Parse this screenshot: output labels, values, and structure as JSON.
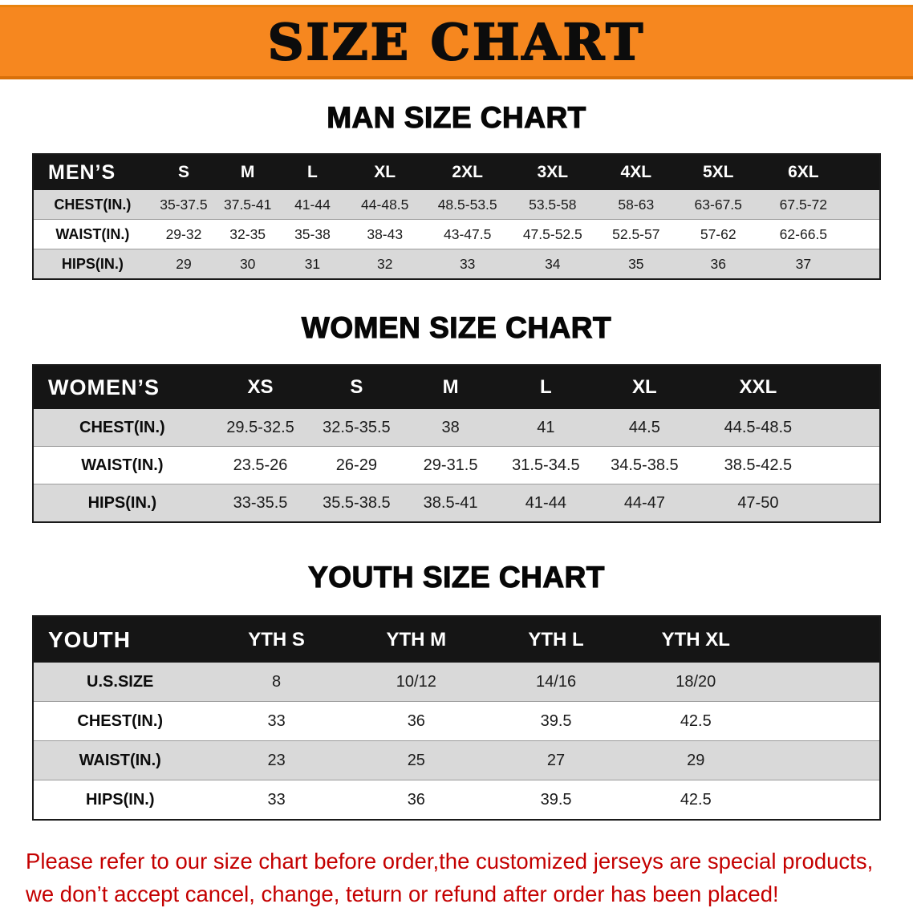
{
  "banner": {
    "title": "SIZE CHART"
  },
  "sections": [
    {
      "heading": "MAN SIZE CHART",
      "header_label": "MEN’S",
      "sizes": [
        "S",
        "M",
        "L",
        "XL",
        "2XL",
        "3XL",
        "4XL",
        "5XL",
        "6XL"
      ],
      "rows": [
        {
          "label": "CHEST(IN.)",
          "values": [
            "35-37.5",
            "37.5-41",
            "41-44",
            "44-48.5",
            "48.5-53.5",
            "53.5-58",
            "58-63",
            "63-67.5",
            "67.5-72"
          ]
        },
        {
          "label": "WAIST(IN.)",
          "values": [
            "29-32",
            "32-35",
            "35-38",
            "38-43",
            "43-47.5",
            "47.5-52.5",
            "52.5-57",
            "57-62",
            "62-66.5"
          ]
        },
        {
          "label": "HIPS(IN.)",
          "values": [
            "29",
            "30",
            "31",
            "32",
            "33",
            "34",
            "35",
            "36",
            "37"
          ]
        }
      ]
    },
    {
      "heading": "WOMEN SIZE CHART",
      "header_label": "WOMEN’S",
      "sizes": [
        "XS",
        "S",
        "M",
        "L",
        "XL",
        "XXL"
      ],
      "rows": [
        {
          "label": "CHEST(IN.)",
          "values": [
            "29.5-32.5",
            "32.5-35.5",
            "38",
            "41",
            "44.5",
            "44.5-48.5"
          ]
        },
        {
          "label": "WAIST(IN.)",
          "values": [
            "23.5-26",
            "26-29",
            "29-31.5",
            "31.5-34.5",
            "34.5-38.5",
            "38.5-42.5"
          ]
        },
        {
          "label": "HIPS(IN.)",
          "values": [
            "33-35.5",
            "35.5-38.5",
            "38.5-41",
            "41-44",
            "44-47",
            "47-50"
          ]
        }
      ]
    },
    {
      "heading": "YOUTH SIZE CHART",
      "header_label": "YOUTH",
      "sizes": [
        "YTH S",
        "YTH M",
        "YTH L",
        "YTH XL"
      ],
      "rows": [
        {
          "label": "U.S.SIZE",
          "values": [
            "8",
            "10/12",
            "14/16",
            "18/20"
          ]
        },
        {
          "label": "CHEST(IN.)",
          "values": [
            "33",
            "36",
            "39.5",
            "42.5"
          ]
        },
        {
          "label": "WAIST(IN.)",
          "values": [
            "23",
            "25",
            "27",
            "29"
          ]
        },
        {
          "label": "HIPS(IN.)",
          "values": [
            "33",
            "36",
            "39.5",
            "42.5"
          ]
        }
      ]
    }
  ],
  "footer": {
    "line1": "Please refer to our size chart before order,the customized jerseys are special products,",
    "line2": "we don’t accept cancel, change, teturn or refund after order has been placed!"
  },
  "colors": {
    "banner_bg": "#F6871F",
    "header_bg": "#151515",
    "row_alt_bg": "#D9D9D9",
    "row_bg": "#FFFFFF",
    "footer_text": "#C40000"
  }
}
